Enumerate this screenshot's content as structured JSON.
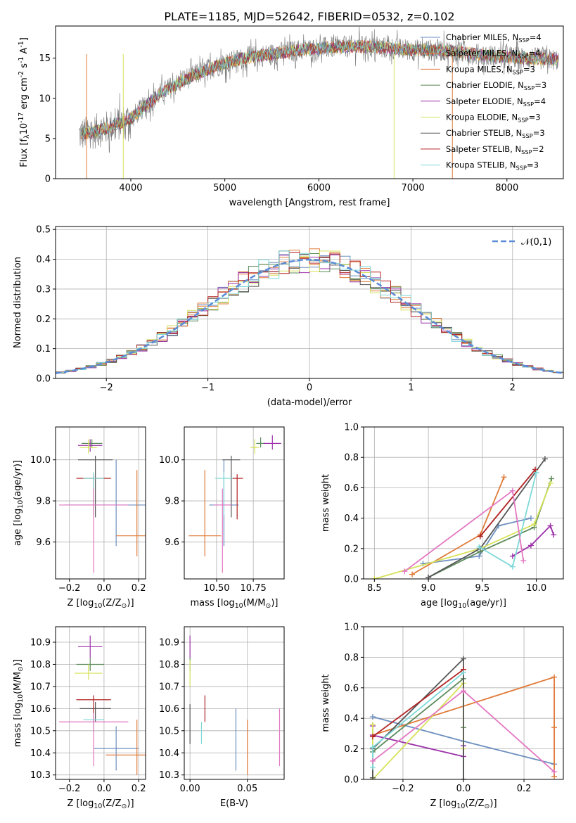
{
  "figure_title": "PLATE=1185, MJD=52642, FIBERID=0532, z=0.102",
  "colors": {
    "series": [
      "#6c8ebf",
      "#e07b39",
      "#e07b39",
      "#5a8a5a",
      "#9b30a8",
      "#d6e25a",
      "#555555",
      "#b22222",
      "#7fd8d8"
    ],
    "data_gray": "#777777",
    "gaussian": "#5b8bd6",
    "grid": "#b0b0b0"
  },
  "chart_data": [
    {
      "id": "spectrum",
      "type": "line",
      "xlabel": "wavelength [Angstrom, rest frame]",
      "ylabel": "Flux [f$_\\lambda$10$^{-17}$ erg cm$^{-2}$ s$^{-1}$ A$^{-1}$]",
      "xlim": [
        3200,
        8600
      ],
      "ylim": [
        0,
        19
      ],
      "xticks": [
        4000,
        5000,
        6000,
        7000,
        8000
      ],
      "yticks": [
        0,
        5,
        10,
        15
      ],
      "grid": false,
      "legend_loc": "upper right",
      "legend": [
        {
          "label": "Chabrier MILES, N$_{SSP}$=4",
          "color": "#6c8ebf"
        },
        {
          "label": "Salpeter MILES, N$_{SSP}$=4",
          "color": "#e07b39"
        },
        {
          "label": "Kroupa MILES, N$_{SSP}$=3",
          "color": "#e07b39"
        },
        {
          "label": "Chabrier ELODIE, N$_{SSP}$=3",
          "color": "#5a8a5a"
        },
        {
          "label": "Salpeter ELODIE, N$_{SSP}$=4",
          "color": "#9b30a8"
        },
        {
          "label": "Kroupa ELODIE, N$_{SSP}$=3",
          "color": "#d6e25a"
        },
        {
          "label": "Chabrier STELIB, N$_{SSP}$=3",
          "color": "#555555"
        },
        {
          "label": "Salpeter STELIB, N$_{SSP}$=2",
          "color": "#b22222"
        },
        {
          "label": "Kroupa STELIB, N$_{SSP}$=3",
          "color": "#7fd8d8"
        }
      ],
      "continuum": {
        "x": [
          3450,
          3600,
          3800,
          4000,
          4300,
          4600,
          4900,
          5200,
          5500,
          5800,
          6100,
          6400,
          6700,
          7000,
          7300,
          7600,
          7900,
          8200,
          8550
        ],
        "y": [
          5.5,
          5.8,
          6.5,
          7.5,
          10.5,
          12.5,
          14.0,
          15.0,
          15.5,
          16.0,
          16.3,
          16.5,
          16.3,
          16.0,
          16.0,
          15.6,
          15.2,
          15.0,
          14.8
        ]
      }
    },
    {
      "id": "residuals",
      "type": "step",
      "xlabel": "(data-model)/error",
      "ylabel": "Normed distribution",
      "xlim": [
        -2.5,
        2.5
      ],
      "ylim": [
        0,
        0.51
      ],
      "xticks": [
        -2,
        -1,
        0,
        1,
        2
      ],
      "yticks": [
        0.0,
        0.1,
        0.2,
        0.3,
        0.4,
        0.5
      ],
      "grid": true,
      "legend_loc": "upper right",
      "gaussian_label": "$\\mathcal{N}(0,1)$",
      "bin_edges_start": -2.5,
      "bin_width": 0.1,
      "bin_count": 50
    },
    {
      "id": "age_vs_Z",
      "type": "errorbar",
      "xlabel": "Z [log$_{10}$($Z/Z_\\odot$)]",
      "ylabel": "age  [log$_{10}$($age/yr$)]",
      "xlim": [
        -0.28,
        0.24
      ],
      "ylim": [
        9.42,
        10.16
      ],
      "xticks": [
        -0.2,
        0.0,
        0.2
      ],
      "yticks": [
        9.6,
        9.8,
        10.0
      ],
      "grid": true,
      "points": [
        {
          "x": 0.07,
          "y": 9.78,
          "xerr": 0.3,
          "yerr_lo": 0.2,
          "yerr_hi": 0.22,
          "color": "#6c8ebf"
        },
        {
          "x": 0.19,
          "y": 9.63,
          "xerr": 0.12,
          "yerr_lo": 0.1,
          "yerr_hi": 0.32,
          "color": "#e07b39"
        },
        {
          "x": -0.07,
          "y": 10.08,
          "xerr": 0.06,
          "yerr_lo": 0.02,
          "yerr_hi": 0.02,
          "color": "#5a8a5a"
        },
        {
          "x": -0.08,
          "y": 10.07,
          "xerr": 0.07,
          "yerr_lo": 0.03,
          "yerr_hi": 0.03,
          "color": "#9b30a8"
        },
        {
          "x": -0.09,
          "y": 10.06,
          "xerr": 0.05,
          "yerr_lo": 0.03,
          "yerr_hi": 0.04,
          "color": "#d6e25a"
        },
        {
          "x": -0.05,
          "y": 10.0,
          "xerr": 0.1,
          "yerr_lo": 0.28,
          "yerr_hi": 0.02,
          "color": "#555555"
        },
        {
          "x": -0.06,
          "y": 9.91,
          "xerr": 0.1,
          "yerr_lo": 0.18,
          "yerr_hi": 0.02,
          "color": "#b22222"
        },
        {
          "x": -0.06,
          "y": 9.91,
          "xerr": 0.06,
          "yerr_lo": 0.18,
          "yerr_hi": 0.03,
          "color": "#7fd8d8"
        },
        {
          "x": -0.06,
          "y": 9.78,
          "xerr": 0.2,
          "yerr_lo": 0.33,
          "yerr_hi": 0.08,
          "color": "#e377c2"
        }
      ]
    },
    {
      "id": "age_vs_mass",
      "type": "errorbar",
      "xlabel": "mass [log$_{10}$($M/M_\\odot$)]",
      "ylabel": "",
      "xlim": [
        10.28,
        10.96
      ],
      "ylim": [
        9.42,
        10.16
      ],
      "xticks": [
        10.5,
        10.75
      ],
      "yticks": [
        9.6,
        9.8,
        10.0
      ],
      "grid": true,
      "points": [
        {
          "x": 10.55,
          "y": 9.78,
          "xerr": 0.1,
          "yerr_lo": 0.2,
          "yerr_hi": 0.22,
          "color": "#6c8ebf"
        },
        {
          "x": 10.42,
          "y": 9.63,
          "xerr": 0.11,
          "yerr_lo": 0.1,
          "yerr_hi": 0.32,
          "color": "#e07b39"
        },
        {
          "x": 10.8,
          "y": 10.08,
          "xerr": 0.03,
          "yerr_lo": 0.02,
          "yerr_hi": 0.03,
          "color": "#5a8a5a"
        },
        {
          "x": 10.88,
          "y": 10.08,
          "xerr": 0.06,
          "yerr_lo": 0.03,
          "yerr_hi": 0.04,
          "color": "#9b30a8"
        },
        {
          "x": 10.76,
          "y": 10.06,
          "xerr": 0.03,
          "yerr_lo": 0.03,
          "yerr_hi": 0.04,
          "color": "#d6e25a"
        },
        {
          "x": 10.6,
          "y": 10.0,
          "xerr": 0.06,
          "yerr_lo": 0.28,
          "yerr_hi": 0.02,
          "color": "#555555"
        },
        {
          "x": 10.64,
          "y": 9.91,
          "xerr": 0.04,
          "yerr_lo": 0.2,
          "yerr_hi": 0.02,
          "color": "#b22222"
        },
        {
          "x": 10.55,
          "y": 9.91,
          "xerr": 0.06,
          "yerr_lo": 0.18,
          "yerr_hi": 0.03,
          "color": "#7fd8d8"
        },
        {
          "x": 10.54,
          "y": 9.78,
          "xerr": 0.06,
          "yerr_lo": 0.33,
          "yerr_hi": 0.08,
          "color": "#e377c2"
        }
      ]
    },
    {
      "id": "weight_vs_age",
      "type": "line",
      "xlabel": "age  [log$_{10}$($age/yr$)]",
      "ylabel": "mass weight",
      "xlim": [
        8.4,
        10.25
      ],
      "ylim": [
        0,
        1.0
      ],
      "xticks": [
        8.5,
        9.0,
        9.5,
        10.0
      ],
      "yticks": [
        0.0,
        0.2,
        0.4,
        0.6,
        0.8,
        1.0
      ],
      "grid": true,
      "series": [
        {
          "color": "#6c8ebf",
          "x": [
            8.95,
            9.47,
            9.65,
            9.95
          ],
          "y": [
            0.1,
            0.15,
            0.35,
            0.4
          ]
        },
        {
          "color": "#e07b39",
          "x": [
            8.85,
            9.48,
            9.7
          ],
          "y": [
            0.03,
            0.29,
            0.67
          ]
        },
        {
          "color": "#5a8a5a",
          "x": [
            9.0,
            9.48,
            9.98,
            10.14
          ],
          "y": [
            0.01,
            0.18,
            0.34,
            0.66
          ]
        },
        {
          "color": "#9b30a8",
          "x": [
            9.78,
            9.95,
            10.13,
            10.16
          ],
          "y": [
            0.15,
            0.22,
            0.35,
            0.29
          ]
        },
        {
          "color": "#d6e25a",
          "x": [
            8.5,
            9.48,
            9.98,
            10.13
          ],
          "y": [
            0.0,
            0.2,
            0.36,
            0.63
          ]
        },
        {
          "color": "#555555",
          "x": [
            9.0,
            9.48,
            10.08
          ],
          "y": [
            0.01,
            0.2,
            0.79
          ]
        },
        {
          "color": "#b22222",
          "x": [
            9.48,
            9.99
          ],
          "y": [
            0.28,
            0.72
          ]
        },
        {
          "color": "#7fd8d8",
          "x": [
            9.47,
            9.78,
            10.0
          ],
          "y": [
            0.21,
            0.08,
            0.7
          ]
        },
        {
          "color": "#e377c2",
          "x": [
            8.78,
            9.78,
            9.88
          ],
          "y": [
            0.05,
            0.58,
            0.12
          ]
        }
      ]
    },
    {
      "id": "mass_vs_Z",
      "type": "errorbar",
      "xlabel": "Z [log$_{10}$($Z/Z_\\odot$)]",
      "ylabel": "mass [log$_{10}$($M/M_\\odot$)]",
      "xlim": [
        -0.28,
        0.24
      ],
      "ylim": [
        10.28,
        10.97
      ],
      "xticks": [
        -0.2,
        0.0,
        0.2
      ],
      "yticks": [
        10.3,
        10.4,
        10.5,
        10.6,
        10.7,
        10.8,
        10.9
      ],
      "grid": true,
      "points": [
        {
          "x": 0.07,
          "y": 10.42,
          "xerr": 0.13,
          "yerr_lo": 0.1,
          "yerr_hi": 0.1,
          "color": "#6c8ebf"
        },
        {
          "x": 0.19,
          "y": 10.39,
          "xerr": 0.18,
          "yerr_lo": 0.09,
          "yerr_hi": 0.16,
          "color": "#e07b39"
        },
        {
          "x": -0.08,
          "y": 10.8,
          "xerr": 0.08,
          "yerr_lo": 0.03,
          "yerr_hi": 0.03,
          "color": "#5a8a5a"
        },
        {
          "x": -0.08,
          "y": 10.88,
          "xerr": 0.07,
          "yerr_lo": 0.05,
          "yerr_hi": 0.05,
          "color": "#9b30a8"
        },
        {
          "x": -0.09,
          "y": 10.76,
          "xerr": 0.08,
          "yerr_lo": 0.03,
          "yerr_hi": 0.04,
          "color": "#d6e25a"
        },
        {
          "x": -0.05,
          "y": 10.6,
          "xerr": 0.09,
          "yerr_lo": 0.06,
          "yerr_hi": 0.03,
          "color": "#555555"
        },
        {
          "x": -0.06,
          "y": 10.64,
          "xerr": 0.1,
          "yerr_lo": 0.1,
          "yerr_hi": 0.02,
          "color": "#b22222"
        },
        {
          "x": -0.06,
          "y": 10.55,
          "xerr": 0.06,
          "yerr_lo": 0.06,
          "yerr_hi": 0.03,
          "color": "#7fd8d8"
        },
        {
          "x": -0.06,
          "y": 10.54,
          "xerr": 0.2,
          "yerr_lo": 0.2,
          "yerr_hi": 0.04,
          "color": "#e377c2"
        }
      ]
    },
    {
      "id": "mass_vs_EBV",
      "type": "errorbar",
      "xlabel": "E(B-V)",
      "ylabel": "",
      "xlim": [
        -0.005,
        0.082
      ],
      "ylim": [
        10.28,
        10.97
      ],
      "xticks": [
        0.0,
        0.05
      ],
      "yticks": [
        10.3,
        10.4,
        10.5,
        10.6,
        10.7,
        10.8,
        10.9
      ],
      "grid": true,
      "points": [
        {
          "x": 0.04,
          "y": 10.46,
          "xerr": 0.0,
          "yerr_lo": 0.14,
          "yerr_hi": 0.14,
          "color": "#6c8ebf"
        },
        {
          "x": 0.05,
          "y": 10.39,
          "xerr": 0.0,
          "yerr_lo": 0.09,
          "yerr_hi": 0.16,
          "color": "#e07b39"
        },
        {
          "x": 0.0,
          "y": 10.8,
          "xerr": 0.0,
          "yerr_lo": 0.03,
          "yerr_hi": 0.03,
          "color": "#5a8a5a"
        },
        {
          "x": 0.0,
          "y": 10.88,
          "xerr": 0.0,
          "yerr_lo": 0.05,
          "yerr_hi": 0.05,
          "color": "#9b30a8"
        },
        {
          "x": 0.0,
          "y": 10.76,
          "xerr": 0.0,
          "yerr_lo": 0.06,
          "yerr_hi": 0.06,
          "color": "#d6e25a"
        },
        {
          "x": 0.0,
          "y": 10.53,
          "xerr": 0.0,
          "yerr_lo": 0.09,
          "yerr_hi": 0.09,
          "color": "#555555"
        },
        {
          "x": 0.013,
          "y": 10.6,
          "xerr": 0.0,
          "yerr_lo": 0.06,
          "yerr_hi": 0.06,
          "color": "#b22222"
        },
        {
          "x": 0.01,
          "y": 10.49,
          "xerr": 0.0,
          "yerr_lo": 0.05,
          "yerr_hi": 0.05,
          "color": "#7fd8d8"
        },
        {
          "x": 0.078,
          "y": 10.47,
          "xerr": 0.0,
          "yerr_lo": 0.13,
          "yerr_hi": 0.13,
          "color": "#e377c2"
        }
      ]
    },
    {
      "id": "weight_vs_Z",
      "type": "line",
      "xlabel": "Z [log$_{10}$($Z/Z_\\odot$)]",
      "ylabel": "mass weight",
      "xlim": [
        -0.33,
        0.33
      ],
      "ylim": [
        0,
        1.0
      ],
      "xticks": [
        -0.2,
        0.0,
        0.2
      ],
      "yticks": [
        0.0,
        0.2,
        0.4,
        0.6,
        0.8,
        1.0
      ],
      "grid": true,
      "series": [
        {
          "color": "#6c8ebf",
          "x": [
            -0.3,
            0.0,
            0.3
          ],
          "y": [
            0.41,
            0.25,
            0.1
          ]
        },
        {
          "color": "#e07b39",
          "x": [
            -0.3,
            0.3,
            0.3,
            0.3
          ],
          "y": [
            0.29,
            0.67,
            0.34,
            0.02
          ]
        },
        {
          "color": "#5a8a5a",
          "x": [
            -0.3,
            -0.3,
            0.0,
            0.0,
            0.0
          ],
          "y": [
            0.01,
            0.18,
            0.66,
            0.34,
            0.0
          ]
        },
        {
          "color": "#9b30a8",
          "x": [
            -0.3,
            -0.3,
            0.0,
            0.0
          ],
          "y": [
            0.35,
            0.29,
            0.15,
            0.22
          ]
        },
        {
          "color": "#d6e25a",
          "x": [
            -0.3,
            -0.3,
            0.0,
            0.0
          ],
          "y": [
            0.36,
            0.0,
            0.63,
            0.2
          ]
        },
        {
          "color": "#555555",
          "x": [
            -0.3,
            -0.3,
            0.0,
            0.0
          ],
          "y": [
            0.01,
            0.2,
            0.79,
            0.0
          ]
        },
        {
          "color": "#b22222",
          "x": [
            -0.3,
            0.0
          ],
          "y": [
            0.28,
            0.72
          ]
        },
        {
          "color": "#7fd8d8",
          "x": [
            -0.3,
            -0.3,
            0.0
          ],
          "y": [
            0.08,
            0.21,
            0.7
          ]
        },
        {
          "color": "#e377c2",
          "x": [
            -0.3,
            0.0,
            0.3
          ],
          "y": [
            0.12,
            0.58,
            0.05
          ]
        }
      ]
    }
  ]
}
